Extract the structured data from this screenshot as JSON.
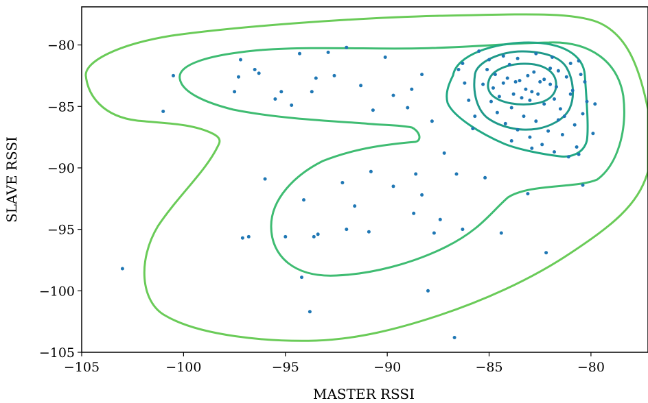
{
  "chart_data": {
    "type": "scatter",
    "title": "",
    "xlabel": "MASTER RSSI",
    "ylabel": "SLAVE RSSI",
    "xlim": [
      -105,
      -77.2
    ],
    "ylim": [
      -105,
      -76.9
    ],
    "xticks": [
      -105,
      -100,
      -95,
      -90,
      -85,
      -80
    ],
    "yticks": [
      -80,
      -85,
      -90,
      -95,
      -100,
      -105
    ],
    "xtick_labels": [
      "−105",
      "−100",
      "−95",
      "−90",
      "−85",
      "−80"
    ],
    "ytick_labels": [
      "−80",
      "−85",
      "−90",
      "−95",
      "−100",
      "−105"
    ],
    "grid": false,
    "legend": "none",
    "colors": {
      "points": "#1f77b4",
      "contour_outer": "#6acb58",
      "contour_mid": "#3fbc72",
      "contour_inner": "#22a884",
      "contour_core": "#1f9a8a"
    },
    "points": [
      [
        -103.0,
        -98.2
      ],
      [
        -101.0,
        -85.4
      ],
      [
        -100.5,
        -82.5
      ],
      [
        -97.2,
        -81.2
      ],
      [
        -97.3,
        -82.6
      ],
      [
        -97.5,
        -83.8
      ],
      [
        -96.5,
        -82.0
      ],
      [
        -96.3,
        -82.3
      ],
      [
        -95.5,
        -84.4
      ],
      [
        -95.2,
        -83.8
      ],
      [
        -94.7,
        -84.9
      ],
      [
        -94.3,
        -80.7
      ],
      [
        -93.7,
        -83.8
      ],
      [
        -93.5,
        -82.7
      ],
      [
        -92.9,
        -80.6
      ],
      [
        -92.6,
        -82.5
      ],
      [
        -92.0,
        -80.2
      ],
      [
        -91.3,
        -83.3
      ],
      [
        -90.7,
        -85.3
      ],
      [
        -90.1,
        -81.0
      ],
      [
        -89.7,
        -84.1
      ],
      [
        -89.0,
        -85.1
      ],
      [
        -88.8,
        -83.6
      ],
      [
        -88.3,
        -82.4
      ],
      [
        -87.8,
        -86.2
      ],
      [
        -87.2,
        -88.8
      ],
      [
        -86.5,
        -82.0
      ],
      [
        -86.3,
        -81.5
      ],
      [
        -86.0,
        -84.5
      ],
      [
        -85.7,
        -85.8
      ],
      [
        -97.1,
        -95.7
      ],
      [
        -96.8,
        -95.6
      ],
      [
        -96.0,
        -90.9
      ],
      [
        -95.0,
        -95.6
      ],
      [
        -94.1,
        -92.6
      ],
      [
        -93.6,
        -95.6
      ],
      [
        -93.4,
        -95.4
      ],
      [
        -92.2,
        -91.2
      ],
      [
        -92.0,
        -95.0
      ],
      [
        -91.6,
        -93.1
      ],
      [
        -90.9,
        -95.2
      ],
      [
        -90.8,
        -90.3
      ],
      [
        -89.7,
        -91.5
      ],
      [
        -88.7,
        -93.7
      ],
      [
        -88.6,
        -90.5
      ],
      [
        -88.3,
        -92.2
      ],
      [
        -87.7,
        -95.3
      ],
      [
        -87.4,
        -94.2
      ],
      [
        -86.6,
        -90.5
      ],
      [
        -86.3,
        -95.0
      ],
      [
        -85.2,
        -90.8
      ],
      [
        -84.4,
        -95.3
      ],
      [
        -94.2,
        -98.9
      ],
      [
        -93.8,
        -101.7
      ],
      [
        -88.0,
        -100.0
      ],
      [
        -86.7,
        -103.8
      ],
      [
        -82.2,
        -96.9
      ],
      [
        -83.1,
        -92.1
      ],
      [
        -80.4,
        -91.4
      ],
      [
        -79.8,
        -84.8
      ],
      [
        -85.5,
        -80.5
      ],
      [
        -85.0,
        -81.2
      ],
      [
        -84.7,
        -82.4
      ],
      [
        -84.3,
        -83.1
      ],
      [
        -84.0,
        -81.6
      ],
      [
        -83.8,
        -84.0
      ],
      [
        -83.5,
        -82.9
      ],
      [
        -83.2,
        -83.6
      ],
      [
        -83.0,
        -84.5
      ],
      [
        -82.8,
        -82.2
      ],
      [
        -82.5,
        -83.0
      ],
      [
        -82.3,
        -84.8
      ],
      [
        -82.0,
        -81.9
      ],
      [
        -81.7,
        -83.4
      ],
      [
        -81.5,
        -85.2
      ],
      [
        -81.2,
        -82.6
      ],
      [
        -81.0,
        -84.0
      ],
      [
        -80.8,
        -86.5
      ],
      [
        -80.6,
        -81.3
      ],
      [
        -80.3,
        -83.0
      ],
      [
        -84.9,
        -84.6
      ],
      [
        -84.6,
        -85.5
      ],
      [
        -84.2,
        -86.4
      ],
      [
        -83.9,
        -85.1
      ],
      [
        -83.6,
        -86.9
      ],
      [
        -83.3,
        -85.8
      ],
      [
        -83.0,
        -87.5
      ],
      [
        -82.7,
        -86.2
      ],
      [
        -82.4,
        -88.1
      ],
      [
        -82.1,
        -87.0
      ],
      [
        -81.8,
        -88.7
      ],
      [
        -81.4,
        -87.3
      ],
      [
        -81.1,
        -89.1
      ],
      [
        -80.7,
        -88.3
      ],
      [
        -80.4,
        -85.6
      ],
      [
        -85.3,
        -83.2
      ],
      [
        -85.1,
        -82.0
      ],
      [
        -84.8,
        -83.5
      ],
      [
        -84.5,
        -84.2
      ],
      [
        -84.1,
        -82.7
      ],
      [
        -83.7,
        -83.0
      ],
      [
        -83.4,
        -84.3
      ],
      [
        -83.1,
        -82.5
      ],
      [
        -82.9,
        -83.8
      ],
      [
        -82.6,
        -84.0
      ],
      [
        -82.3,
        -82.8
      ],
      [
        -82.0,
        -83.2
      ],
      [
        -81.8,
        -84.4
      ],
      [
        -81.6,
        -82.1
      ],
      [
        -81.3,
        -85.8
      ],
      [
        -80.9,
        -83.7
      ],
      [
        -80.5,
        -82.4
      ],
      [
        -80.2,
        -84.6
      ],
      [
        -79.9,
        -87.2
      ],
      [
        -80.6,
        -88.9
      ],
      [
        -84.3,
        -80.9
      ],
      [
        -83.6,
        -81.1
      ],
      [
        -82.7,
        -80.7
      ],
      [
        -81.9,
        -81.0
      ],
      [
        -81.0,
        -81.5
      ],
      [
        -83.9,
        -87.8
      ],
      [
        -82.9,
        -88.4
      ],
      [
        -81.6,
        -86.1
      ],
      [
        -85.8,
        -86.8
      ],
      [
        -86.2,
        -83.1
      ]
    ]
  }
}
